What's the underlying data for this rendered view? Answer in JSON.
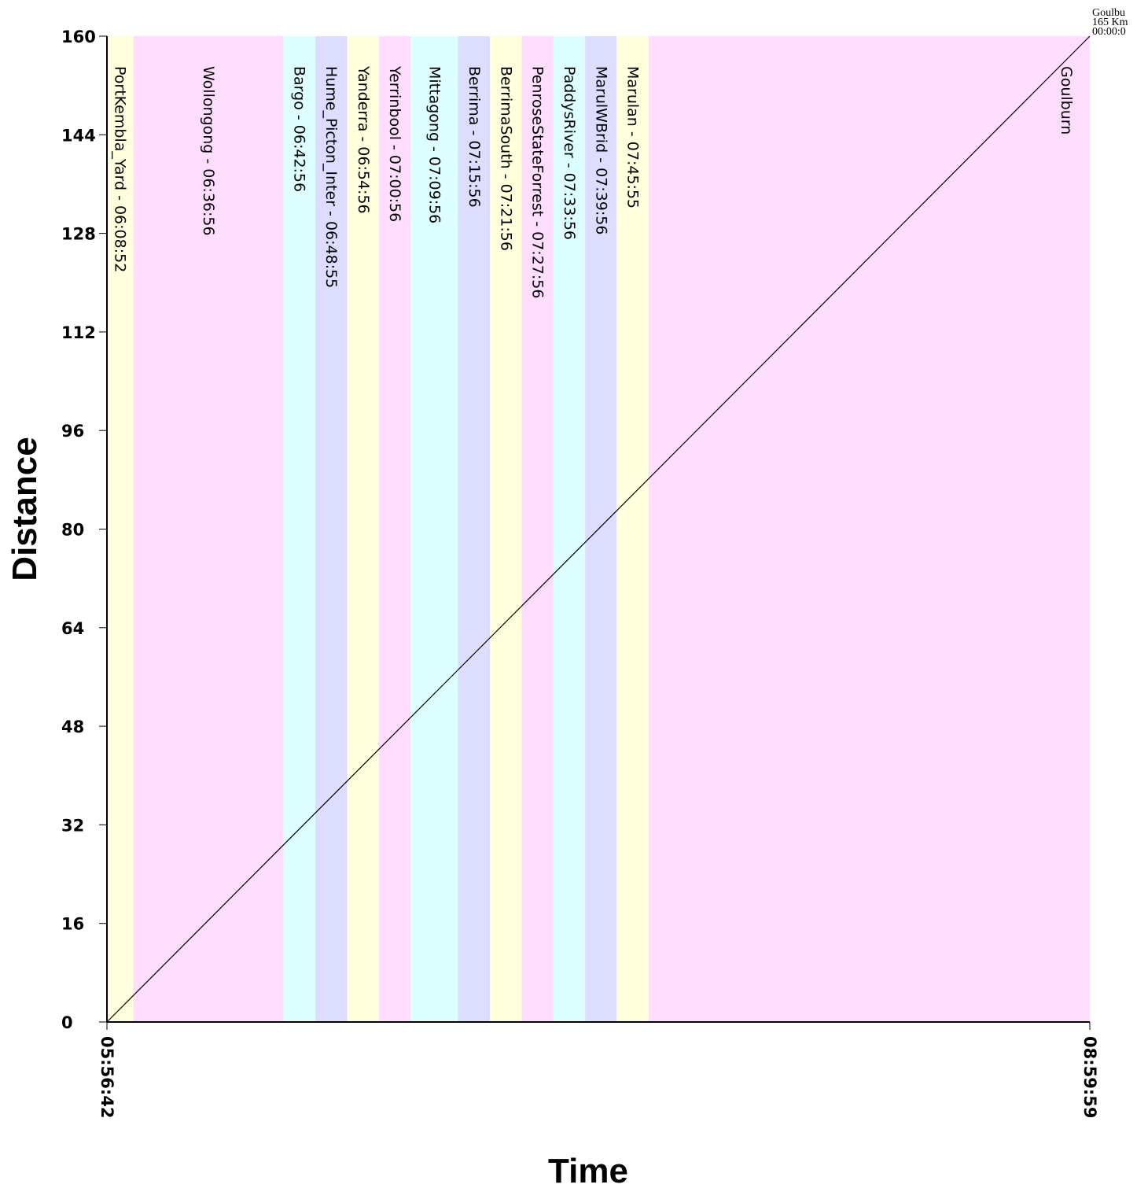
{
  "chart_data": {
    "type": "line",
    "xlabel": "Time",
    "ylabel": "Distance",
    "xlim": [
      "05:56:42",
      "08:59:59"
    ],
    "x_tick_labels": [
      "05:56:42",
      "08:59:59"
    ],
    "ylim": [
      0,
      160
    ],
    "y_ticks": [
      0,
      16,
      32,
      48,
      64,
      80,
      96,
      112,
      128,
      144,
      160
    ],
    "grid": false,
    "band_colors": [
      "#ffffdd",
      "#ffddff",
      "#ddffff",
      "#ddddff"
    ],
    "stations": [
      {
        "name": "PortKembla_Yard",
        "time": "06:08:52",
        "label": "PortKembla_Yard - 06:08:52",
        "color": "#ffffdd",
        "band_start": "05:56:42",
        "band_end": "06:01:36"
      },
      {
        "name": "Wollongong",
        "time": "06:36:56",
        "label": "Wollongong - 06:36:56",
        "color": "#ffddff",
        "band_start": "06:01:36",
        "band_end": "06:29:38"
      },
      {
        "name": "Bargo",
        "time": "06:42:56",
        "label": "Bargo - 06:42:56",
        "color": "#ddffff",
        "band_start": "06:29:38",
        "band_end": "06:35:32"
      },
      {
        "name": "Hume_Picton_Inter",
        "time": "06:48:55",
        "label": "Hume_Picton_Inter - 06:48:55",
        "color": "#ddddff",
        "band_start": "06:35:32",
        "band_end": "06:41:31"
      },
      {
        "name": "Yanderra",
        "time": "06:54:56",
        "label": "Yanderra - 06:54:56",
        "color": "#ffffdd",
        "band_start": "06:41:31",
        "band_end": "06:47:25"
      },
      {
        "name": "Yerrinbool",
        "time": "07:00:56",
        "label": "Yerrinbool - 07:00:56",
        "color": "#ffddff",
        "band_start": "06:47:25",
        "band_end": "06:53:20"
      },
      {
        "name": "Mittagong",
        "time": "07:09:56",
        "label": "Mittagong - 07:09:56",
        "color": "#ddffff",
        "band_start": "06:53:20",
        "band_end": "07:02:10"
      },
      {
        "name": "Berrima",
        "time": "07:15:56",
        "label": "Berrima - 07:15:56",
        "color": "#ddddff",
        "band_start": "07:02:10",
        "band_end": "07:08:08"
      },
      {
        "name": "BerrimaSouth",
        "time": "07:21:56",
        "label": "BerrimaSouth - 07:21:56",
        "color": "#ffffdd",
        "band_start": "07:08:08",
        "band_end": "07:14:03"
      },
      {
        "name": "PenroseStateForrest",
        "time": "07:27:56",
        "label": "PenroseStateForrest - 07:27:56",
        "color": "#ffddff",
        "band_start": "07:14:03",
        "band_end": "07:19:56"
      },
      {
        "name": "PaddysRiver",
        "time": "07:33:56",
        "label": "PaddysRiver - 07:33:56",
        "color": "#ddffff",
        "band_start": "07:19:56",
        "band_end": "07:25:53"
      },
      {
        "name": "MarulWBrid",
        "time": "07:39:56",
        "label": "MarulWBrid - 07:39:56",
        "color": "#ddddff",
        "band_start": "07:25:53",
        "band_end": "07:31:46"
      },
      {
        "name": "Marulan",
        "time": "07:45:55",
        "label": "Marulan - 07:45:55",
        "color": "#ffffdd",
        "band_start": "07:31:46",
        "band_end": "07:37:42"
      },
      {
        "name": "Goulburn",
        "time": "",
        "label": "Goulburn",
        "color": "#ffddff",
        "band_start": "07:37:42",
        "band_end": "08:59:59"
      }
    ],
    "series": [
      {
        "points": [
          {
            "x": "05:56:42",
            "y": 0
          },
          {
            "x": "08:59:59",
            "y": 160
          }
        ],
        "color": "#000000"
      }
    ],
    "corner_note": [
      "Goulbu",
      "165 Km",
      "00:00:0"
    ]
  }
}
